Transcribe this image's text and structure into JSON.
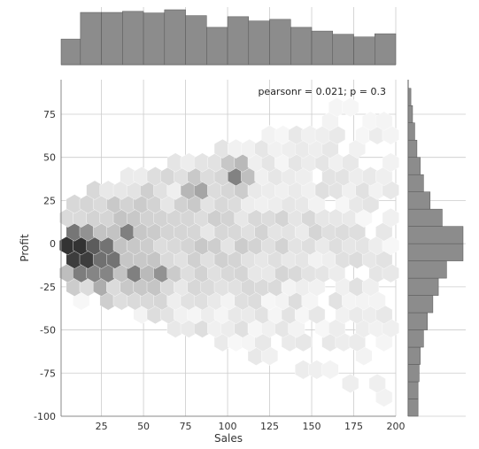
{
  "chart_data": {
    "type": "heatmap",
    "subtype": "hexbin-jointplot",
    "xlabel": "Sales",
    "ylabel": "Profit",
    "xlim": [
      1,
      200
    ],
    "ylim": [
      -100,
      95
    ],
    "x_ticks": [
      25,
      50,
      75,
      100,
      125,
      150,
      175,
      200
    ],
    "y_ticks": [
      -100,
      -75,
      -50,
      -25,
      0,
      25,
      50,
      75
    ],
    "annotation": "pearsonr = 0.021; p = 0.3",
    "grid": true,
    "hexbin_dense_regions": [
      {
        "x": 9,
        "y": -1,
        "density": 1.0
      },
      {
        "x": 13,
        "y": -9,
        "density": 0.95
      },
      {
        "x": 17,
        "y": -1,
        "density": 0.8
      },
      {
        "x": 21,
        "y": -9,
        "density": 0.7
      },
      {
        "x": 25,
        "y": -17,
        "density": 0.6
      },
      {
        "x": 29,
        "y": -1,
        "density": 0.55
      },
      {
        "x": 33,
        "y": -9,
        "density": 0.55
      },
      {
        "x": 41,
        "y": 7,
        "density": 0.5
      },
      {
        "x": 45,
        "y": -17,
        "density": 0.5
      },
      {
        "x": 59,
        "y": -17,
        "density": 0.45
      },
      {
        "x": 82,
        "y": 31,
        "density": 0.4
      },
      {
        "x": 106,
        "y": 40,
        "density": 0.5
      }
    ],
    "marginal_x": {
      "label": "Sales",
      "bin_edges": [
        0,
        12.5,
        25,
        37.5,
        50,
        62.5,
        75,
        87.5,
        100,
        112.5,
        125,
        137.5,
        150,
        162.5,
        175,
        187.5,
        200
      ],
      "relative_heights": [
        0.48,
        0.98,
        0.98,
        1.0,
        0.97,
        1.03,
        0.92,
        0.7,
        0.9,
        0.82,
        0.85,
        0.7,
        0.63,
        0.57,
        0.52,
        0.58
      ]
    },
    "marginal_y": {
      "label": "Profit",
      "bin_edges": [
        -100,
        -90,
        -80,
        -70,
        -60,
        -50,
        -40,
        -30,
        -20,
        -10,
        0,
        10,
        20,
        30,
        40,
        50,
        60,
        70,
        80,
        90
      ],
      "relative_widths": [
        0.18,
        0.18,
        0.2,
        0.22,
        0.28,
        0.35,
        0.45,
        0.55,
        0.7,
        1.0,
        1.0,
        0.62,
        0.4,
        0.28,
        0.22,
        0.16,
        0.12,
        0.08,
        0.05
      ]
    },
    "colors": {
      "hex_max": "#000000",
      "hex_min": "#ffffff",
      "hist_fill": "#8c8c8c",
      "hist_edge": "#555555",
      "grid": "#cccccc",
      "spine": "#888888"
    }
  }
}
